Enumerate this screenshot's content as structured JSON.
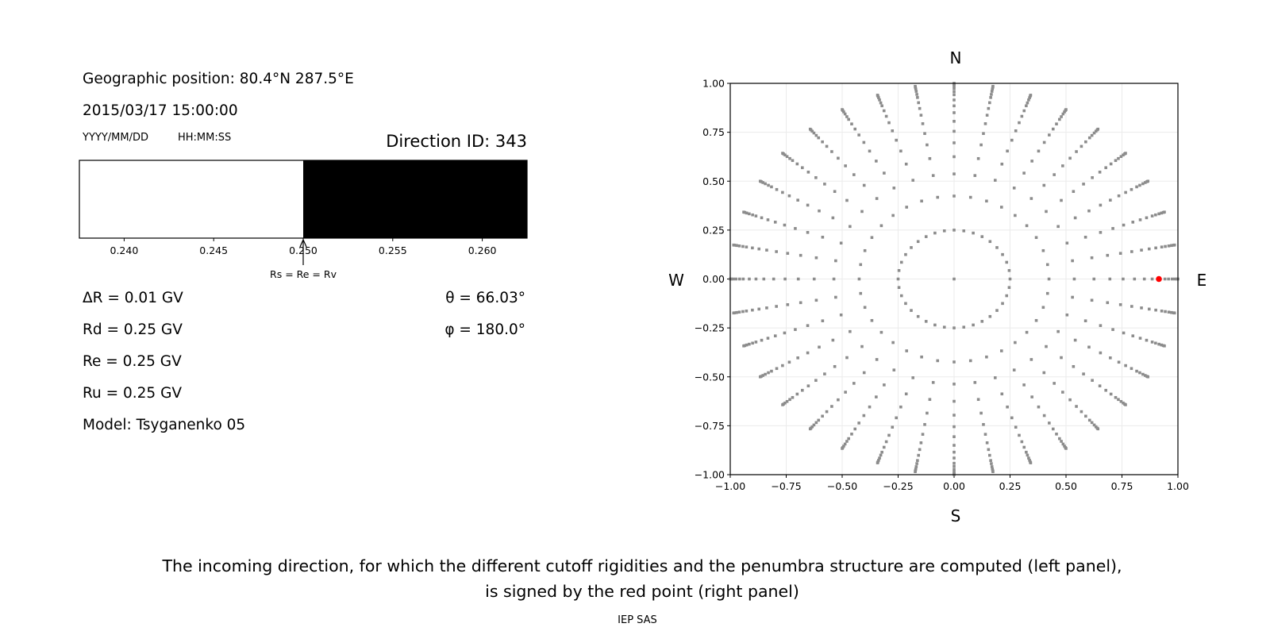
{
  "left_panel": {
    "position": "Geographic position: 80.4°N 287.5°E",
    "datetime": "2015/03/17 15:00:00",
    "date_format": "YYYY/MM/DD",
    "time_format": "HH:MM:SS",
    "direction_id": "Direction ID: 343",
    "delta_r": "ΔR = 0.01 GV",
    "rd": "Rd = 0.25 GV",
    "re": "Re = 0.25 GV",
    "ru": "Ru = 0.25 GV",
    "model": "Model: Tsyganenko 05",
    "theta": "θ = 66.03°",
    "phi": "φ = 180.0°",
    "arrow_label": "Rs = Re = Rv"
  },
  "caption": {
    "line1": "The incoming direction, for which the different cutoff rigidities and the penumbra structure are computed (left panel),",
    "line2": "is signed by the red point (right panel)",
    "credit": "IEP SAS"
  },
  "chart_data": [
    {
      "type": "bar",
      "description_kind": "penumbra",
      "xlim": [
        0.2375,
        0.2625
      ],
      "x_ticks": [
        "0.240",
        "0.245",
        "0.250",
        "0.255",
        "0.260"
      ],
      "x_tick_values": [
        0.24,
        0.245,
        0.25,
        0.255,
        0.26
      ],
      "segments": [
        {
          "from": 0.2375,
          "to": 0.25,
          "color": "#ffffff",
          "meaning": "allowed"
        },
        {
          "from": 0.25,
          "to": 0.2625,
          "color": "#000000",
          "meaning": "forbidden"
        }
      ],
      "marker_value": 0.25
    },
    {
      "type": "scatter",
      "xlim": [
        -1,
        1
      ],
      "ylim": [
        -1,
        1
      ],
      "x_ticks": [
        "−1.00",
        "−0.75",
        "−0.50",
        "−0.25",
        "0.00",
        "0.25",
        "0.50",
        "0.75",
        "1.00"
      ],
      "y_ticks": [
        "−1.00",
        "−0.75",
        "−0.50",
        "−0.25",
        "0.00",
        "0.25",
        "0.50",
        "0.75",
        "1.00"
      ],
      "tick_values": [
        -1,
        -0.75,
        -0.5,
        -0.25,
        0,
        0.25,
        0.5,
        0.75,
        1
      ],
      "grid": true,
      "compass": {
        "top": "N",
        "bottom": "S",
        "left": "W",
        "right": "E"
      },
      "point_color": "#8c8c8c",
      "highlight_color": "#ff0000",
      "grid_points": {
        "center": [
          0,
          0
        ],
        "azimuth_step_deg": 10,
        "ring_radii": [
          0.25,
          0.424,
          0.537,
          0.625,
          0.696,
          0.755,
          0.806,
          0.85,
          0.885,
          0.915,
          0.942,
          0.958,
          0.974,
          0.986,
          0.995,
          1.0
        ]
      },
      "highlight_point": {
        "x": 0.915,
        "y": 0.0
      }
    }
  ]
}
